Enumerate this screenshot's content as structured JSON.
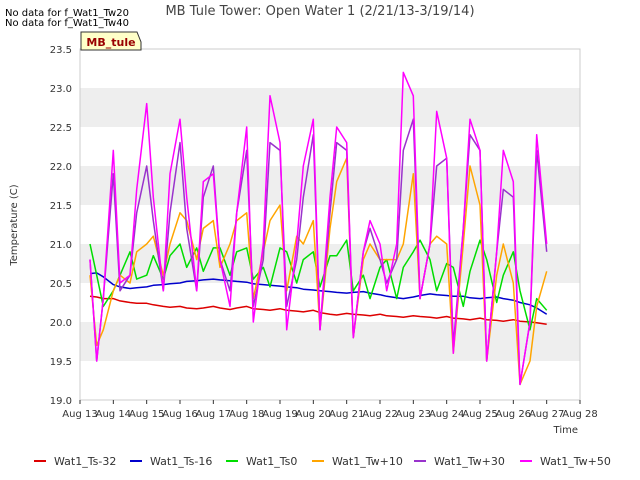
{
  "notices": [
    "No data for f_Wat1_Tw20",
    "No data for f_Wat1_Tw40"
  ],
  "site_badge": "MB_tule",
  "chart_data": {
    "type": "line",
    "title": "MB Tule Tower: Open Water 1 (2/21/13-3/19/14)",
    "xlabel": "Time",
    "ylabel": "Temperature (C)",
    "x_ticks": [
      "Aug 13",
      "Aug 14",
      "Aug 15",
      "Aug 16",
      "Aug 17",
      "Aug 18",
      "Aug 19",
      "Aug 20",
      "Aug 21",
      "Aug 22",
      "Aug 23",
      "Aug 24",
      "Aug 25",
      "Aug 26",
      "Aug 27",
      "Aug 28"
    ],
    "y_ticks": [
      19.0,
      19.5,
      20.0,
      20.5,
      21.0,
      21.5,
      22.0,
      22.5,
      23.0,
      23.5
    ],
    "ylim": [
      19.0,
      23.5
    ],
    "xlim_days": [
      13,
      28
    ],
    "grid": "horizontal bands",
    "legend_position": "bottom",
    "x_days": [
      13.3,
      13.5,
      13.7,
      14.0,
      14.2,
      14.5,
      14.7,
      15.0,
      15.2,
      15.5,
      15.7,
      16.0,
      16.2,
      16.5,
      16.7,
      17.0,
      17.2,
      17.5,
      17.7,
      18.0,
      18.2,
      18.5,
      18.7,
      19.0,
      19.2,
      19.5,
      19.7,
      20.0,
      20.2,
      20.5,
      20.7,
      21.0,
      21.2,
      21.5,
      21.7,
      22.0,
      22.2,
      22.5,
      22.7,
      23.0,
      23.2,
      23.5,
      23.7,
      24.0,
      24.2,
      24.5,
      24.7,
      25.0,
      25.2,
      25.5,
      25.7,
      26.0,
      26.2,
      26.5,
      26.7,
      27.0
    ],
    "series": [
      {
        "name": "Wat1_Ts-32",
        "color": "#dd0000",
        "values": [
          20.33,
          20.32,
          20.3,
          20.3,
          20.27,
          20.25,
          20.24,
          20.24,
          20.22,
          20.2,
          20.19,
          20.2,
          20.18,
          20.17,
          20.18,
          20.2,
          20.18,
          20.16,
          20.18,
          20.2,
          20.17,
          20.16,
          20.15,
          20.17,
          20.15,
          20.14,
          20.13,
          20.15,
          20.12,
          20.1,
          20.09,
          20.11,
          20.1,
          20.09,
          20.08,
          20.1,
          20.08,
          20.07,
          20.06,
          20.08,
          20.07,
          20.06,
          20.05,
          20.07,
          20.05,
          20.04,
          20.03,
          20.05,
          20.03,
          20.02,
          20.01,
          20.03,
          20.01,
          20.0,
          19.99,
          19.97
        ]
      },
      {
        "name": "Wat1_Ts-16",
        "color": "#0000cc",
        "values": [
          20.62,
          20.63,
          20.58,
          20.48,
          20.45,
          20.43,
          20.44,
          20.45,
          20.47,
          20.48,
          20.49,
          20.5,
          20.52,
          20.53,
          20.54,
          20.55,
          20.54,
          20.53,
          20.52,
          20.51,
          20.49,
          20.48,
          20.47,
          20.46,
          20.45,
          20.44,
          20.42,
          20.41,
          20.4,
          20.39,
          20.38,
          20.37,
          20.38,
          20.39,
          20.37,
          20.35,
          20.33,
          20.31,
          20.3,
          20.32,
          20.34,
          20.36,
          20.35,
          20.34,
          20.33,
          20.33,
          20.31,
          20.3,
          20.31,
          20.32,
          20.3,
          20.28,
          20.25,
          20.22,
          20.18,
          20.1
        ]
      },
      {
        "name": "Wat1_Ts0",
        "color": "#00dd00",
        "values": [
          21.0,
          20.6,
          20.2,
          20.4,
          20.6,
          20.9,
          20.55,
          20.6,
          20.85,
          20.55,
          20.85,
          21.0,
          20.7,
          20.95,
          20.65,
          20.95,
          20.95,
          20.6,
          20.9,
          20.95,
          20.55,
          20.7,
          20.45,
          20.95,
          20.9,
          20.5,
          20.8,
          20.9,
          20.45,
          20.85,
          20.85,
          21.05,
          20.4,
          20.6,
          20.3,
          20.7,
          20.8,
          20.3,
          20.7,
          20.9,
          21.05,
          20.8,
          20.4,
          20.75,
          20.7,
          20.2,
          20.65,
          21.05,
          20.8,
          20.25,
          20.6,
          20.9,
          20.4,
          19.9,
          20.3,
          20.15
        ]
      },
      {
        "name": "Wat1_Tw+10",
        "color": "#ffa500",
        "values": [
          20.6,
          19.7,
          19.9,
          20.4,
          20.6,
          20.5,
          20.9,
          21.0,
          21.1,
          20.6,
          21.0,
          21.4,
          21.3,
          20.8,
          21.2,
          21.3,
          20.7,
          21.0,
          21.3,
          21.4,
          20.3,
          20.9,
          21.3,
          21.5,
          20.4,
          21.1,
          21.0,
          21.3,
          19.9,
          21.2,
          21.8,
          22.1,
          19.8,
          20.8,
          21.0,
          20.8,
          20.8,
          20.8,
          21.0,
          21.9,
          20.3,
          21.0,
          21.1,
          21.0,
          19.6,
          21.0,
          22.0,
          21.5,
          19.5,
          20.6,
          21.0,
          20.5,
          19.2,
          19.5,
          20.2,
          20.65
        ]
      },
      {
        "name": "Wat1_Tw+30",
        "color": "#9933cc",
        "values": [
          20.8,
          19.5,
          20.3,
          21.9,
          20.4,
          20.6,
          21.4,
          22.0,
          21.3,
          20.4,
          21.4,
          22.3,
          21.2,
          20.4,
          21.6,
          22.0,
          20.8,
          20.4,
          21.4,
          22.2,
          20.2,
          20.8,
          22.3,
          22.2,
          20.2,
          20.8,
          21.6,
          22.4,
          19.9,
          21.4,
          22.3,
          22.2,
          19.8,
          20.9,
          21.2,
          20.8,
          20.5,
          20.8,
          22.2,
          22.6,
          20.3,
          21.0,
          22.0,
          22.1,
          19.7,
          21.2,
          22.4,
          22.2,
          19.5,
          20.9,
          21.7,
          21.6,
          19.2,
          20.0,
          22.2,
          20.9
        ]
      },
      {
        "name": "Wat1_Tw+50",
        "color": "#ff00ff",
        "values": [
          20.8,
          19.5,
          20.3,
          22.2,
          20.5,
          20.6,
          21.7,
          22.8,
          21.6,
          20.4,
          21.9,
          22.6,
          21.6,
          20.4,
          21.8,
          21.9,
          20.8,
          20.2,
          21.4,
          22.5,
          20.0,
          21.0,
          22.9,
          22.3,
          19.9,
          21.0,
          22.0,
          22.6,
          19.9,
          21.6,
          22.5,
          22.3,
          19.8,
          20.9,
          21.3,
          21.0,
          20.4,
          21.0,
          23.2,
          22.9,
          20.3,
          21.0,
          22.7,
          22.1,
          19.6,
          21.2,
          22.6,
          22.2,
          19.5,
          20.9,
          22.2,
          21.8,
          19.2,
          20.0,
          22.4,
          21.0
        ]
      }
    ]
  }
}
